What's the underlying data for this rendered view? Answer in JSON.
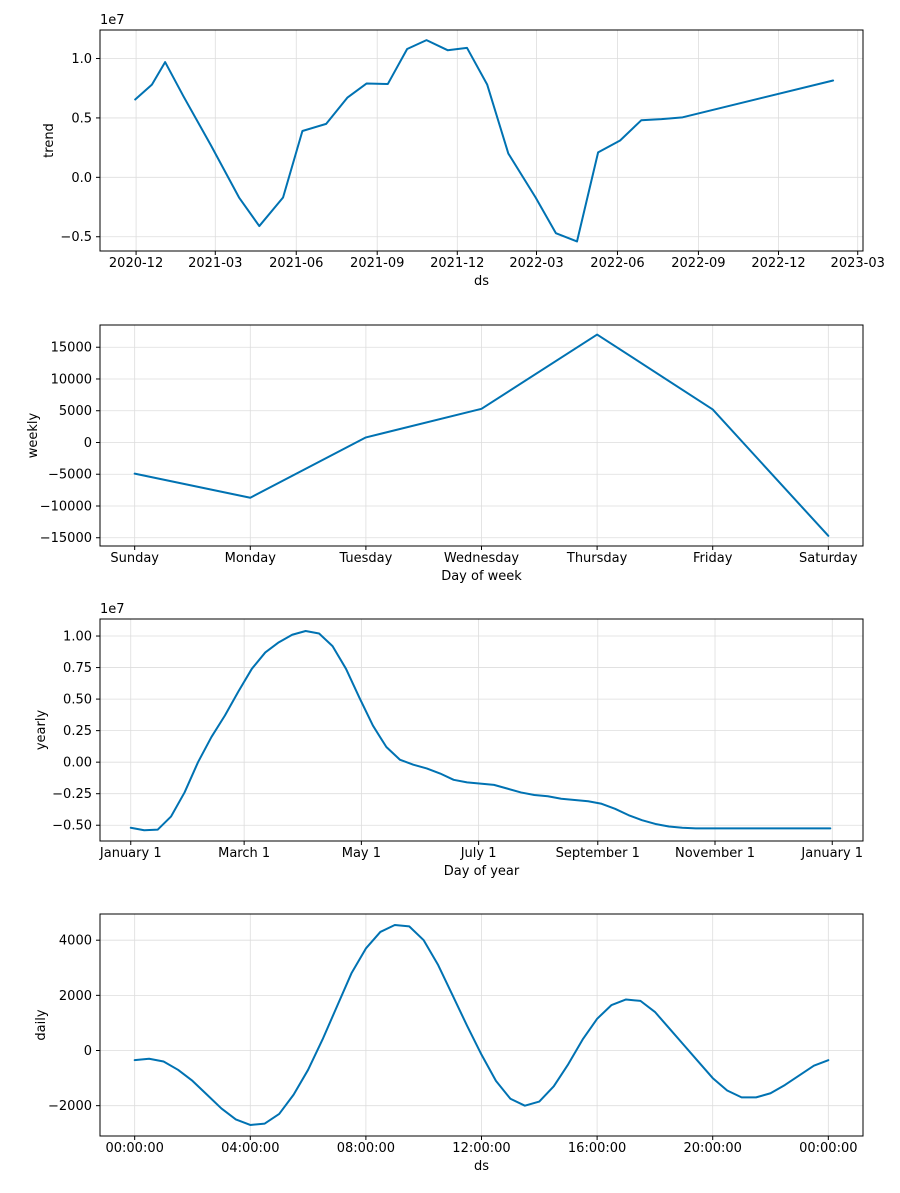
{
  "line_color": "#0072B2",
  "grid_color": "#dddddd",
  "chart_data": [
    {
      "type": "line",
      "ylabel": "trend",
      "xlabel": "ds",
      "offset_label": "1e7",
      "x_kind": "date",
      "xlim": [
        "2020-10-21",
        "2023-03-07"
      ],
      "ylim": [
        -0.62,
        1.24
      ],
      "yticks": [
        1.0,
        0.5,
        0.0,
        -0.5
      ],
      "ytick_labels": [
        "1.0",
        "0.5",
        "0.0",
        "−0.5"
      ],
      "xticks": [
        "2020-12-01",
        "2021-03-01",
        "2021-06-01",
        "2021-09-01",
        "2021-12-01",
        "2022-03-01",
        "2022-06-01",
        "2022-09-01",
        "2022-12-01",
        "2023-03-01"
      ],
      "xtick_labels": [
        "2020-12",
        "2021-03",
        "2021-06",
        "2021-09",
        "2021-12",
        "2022-03",
        "2022-06",
        "2022-09",
        "2022-12",
        "2023-03"
      ],
      "x": [
        "2020-11-30",
        "2020-12-19",
        "2021-01-03",
        "2021-01-24",
        "2021-02-24",
        "2021-03-28",
        "2021-04-20",
        "2021-05-17",
        "2021-06-08",
        "2021-07-05",
        "2021-07-29",
        "2021-08-20",
        "2021-09-13",
        "2021-10-05",
        "2021-10-27",
        "2021-11-20",
        "2021-12-12",
        "2022-01-04",
        "2022-01-28",
        "2022-02-28",
        "2022-03-23",
        "2022-04-16",
        "2022-05-10",
        "2022-06-04",
        "2022-06-28",
        "2022-07-21",
        "2022-08-14",
        "2023-02-01"
      ],
      "values": [
        0.655,
        0.78,
        0.97,
        0.68,
        0.27,
        -0.17,
        -0.41,
        -0.17,
        0.39,
        0.45,
        0.67,
        0.79,
        0.785,
        1.08,
        1.155,
        1.07,
        1.09,
        0.78,
        0.2,
        -0.17,
        -0.47,
        -0.54,
        0.21,
        0.31,
        0.48,
        0.49,
        0.505,
        0.815
      ]
    },
    {
      "type": "line",
      "ylabel": "weekly",
      "xlabel": "Day of week",
      "offset_label": "",
      "x_kind": "index",
      "xlim": [
        -0.3,
        6.3
      ],
      "ylim": [
        -16300,
        18500
      ],
      "yticks": [
        15000,
        10000,
        5000,
        0,
        -5000,
        -10000,
        -15000
      ],
      "ytick_labels": [
        "15000",
        "10000",
        "5000",
        "0",
        "−5000",
        "−10000",
        "−15000"
      ],
      "xticks": [
        0,
        1,
        2,
        3,
        4,
        5,
        6
      ],
      "xtick_labels": [
        "Sunday",
        "Monday",
        "Tuesday",
        "Wednesday",
        "Thursday",
        "Friday",
        "Saturday"
      ],
      "x": [
        0,
        1,
        2,
        3,
        4,
        5,
        6
      ],
      "values": [
        -4900,
        -8700,
        800,
        5300,
        17000,
        5200,
        -14700
      ]
    },
    {
      "type": "line",
      "ylabel": "yearly",
      "xlabel": "Day of year",
      "offset_label": "1e7",
      "x_kind": "number",
      "xlim": [
        -16,
        381
      ],
      "ylim": [
        -0.625,
        1.135
      ],
      "yticks": [
        1.0,
        0.75,
        0.5,
        0.25,
        0.0,
        -0.25,
        -0.5
      ],
      "ytick_labels": [
        "1.00",
        "0.75",
        "0.50",
        "0.25",
        "0.00",
        "−0.25",
        "−0.50"
      ],
      "xticks": [
        0,
        59,
        120,
        181,
        243,
        304,
        365
      ],
      "xtick_labels": [
        "January 1",
        "March 1",
        "May 1",
        "July 1",
        "September 1",
        "November 1",
        "January 1"
      ],
      "x": [
        0,
        7,
        14,
        21,
        28,
        35,
        42,
        49,
        56,
        63,
        70,
        77,
        84,
        91,
        98,
        105,
        112,
        119,
        126,
        133,
        140,
        147,
        154,
        161,
        168,
        175,
        182,
        189,
        196,
        203,
        210,
        217,
        224,
        231,
        238,
        245,
        252,
        259,
        266,
        273,
        280,
        287,
        294,
        301,
        308,
        315,
        322,
        329,
        336,
        343,
        350,
        357,
        364
      ],
      "values": [
        -0.52,
        -0.54,
        -0.535,
        -0.43,
        -0.24,
        0.0,
        0.2,
        0.37,
        0.56,
        0.74,
        0.87,
        0.95,
        1.01,
        1.04,
        1.02,
        0.92,
        0.74,
        0.51,
        0.29,
        0.12,
        0.02,
        -0.02,
        -0.05,
        -0.09,
        -0.14,
        -0.16,
        -0.17,
        -0.18,
        -0.21,
        -0.24,
        -0.26,
        -0.27,
        -0.29,
        -0.3,
        -0.31,
        -0.33,
        -0.37,
        -0.42,
        -0.46,
        -0.49,
        -0.51,
        -0.52,
        -0.525,
        -0.525,
        -0.525,
        -0.525,
        -0.525,
        -0.525,
        -0.525,
        -0.525,
        -0.525,
        -0.525,
        -0.525
      ]
    },
    {
      "type": "line",
      "ylabel": "daily",
      "xlabel": "ds",
      "offset_label": "",
      "x_kind": "number",
      "xlim": [
        -1.2,
        25.2
      ],
      "ylim": [
        -3100,
        4950
      ],
      "yticks": [
        4000,
        2000,
        0,
        -2000
      ],
      "ytick_labels": [
        "4000",
        "2000",
        "0",
        "−2000"
      ],
      "xticks": [
        0,
        4,
        8,
        12,
        16,
        20,
        24
      ],
      "xtick_labels": [
        "00:00:00",
        "04:00:00",
        "08:00:00",
        "12:00:00",
        "16:00:00",
        "20:00:00",
        "00:00:00"
      ],
      "x": [
        0,
        0.5,
        1,
        1.5,
        2,
        2.5,
        3,
        3.5,
        4,
        4.5,
        5,
        5.5,
        6,
        6.5,
        7,
        7.5,
        8,
        8.5,
        9,
        9.5,
        10,
        10.5,
        11,
        11.5,
        12,
        12.5,
        13,
        13.5,
        14,
        14.5,
        15,
        15.5,
        16,
        16.5,
        17,
        17.5,
        18,
        18.5,
        19,
        19.5,
        20,
        20.5,
        21,
        21.5,
        22,
        22.5,
        23,
        23.5,
        24
      ],
      "values": [
        -350,
        -300,
        -400,
        -700,
        -1100,
        -1600,
        -2100,
        -2500,
        -2700,
        -2650,
        -2300,
        -1600,
        -700,
        400,
        1600,
        2800,
        3700,
        4300,
        4550,
        4500,
        4000,
        3100,
        2000,
        900,
        -150,
        -1100,
        -1750,
        -2000,
        -1850,
        -1300,
        -500,
        400,
        1150,
        1650,
        1850,
        1800,
        1400,
        800,
        200,
        -400,
        -1000,
        -1450,
        -1700,
        -1700,
        -1550,
        -1250,
        -900,
        -550,
        -350
      ]
    }
  ]
}
